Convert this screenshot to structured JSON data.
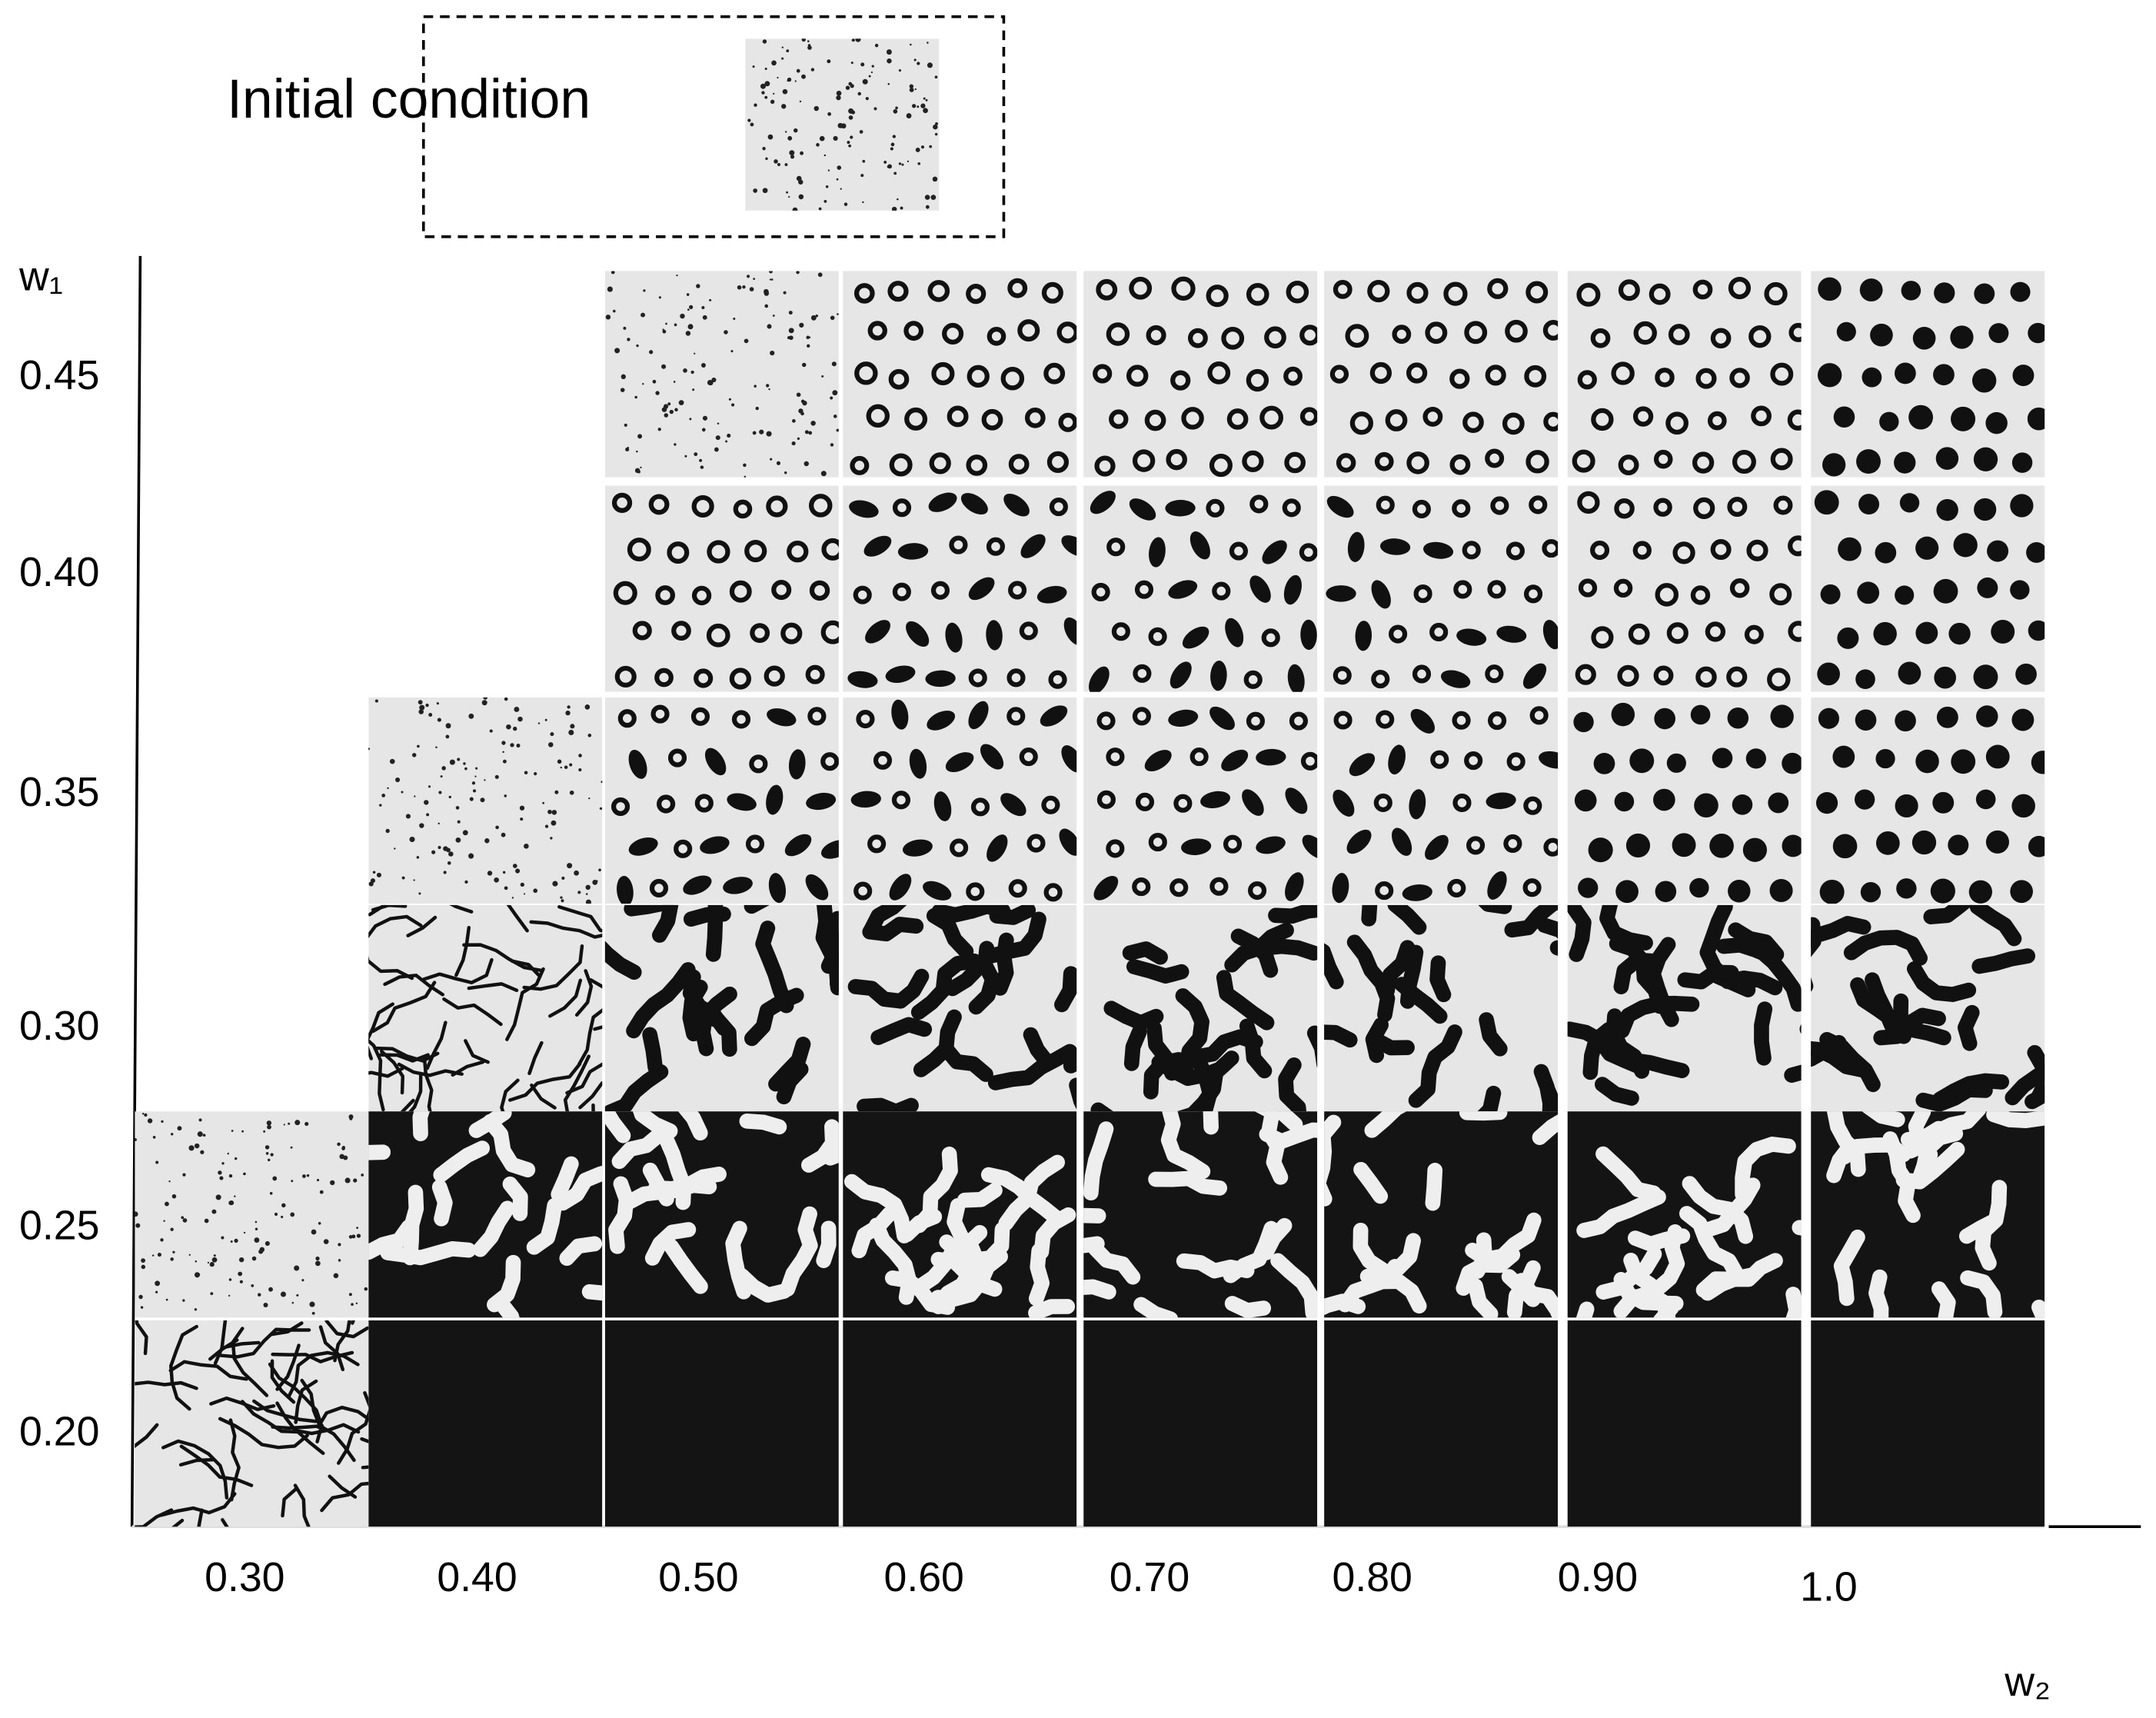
{
  "initial_condition": {
    "label": "Initial condition"
  },
  "y_axis": {
    "label": "w₁",
    "ticks": [
      "0.45",
      "0.40",
      "0.35",
      "0.30",
      "0.25",
      "0.20"
    ]
  },
  "x_axis": {
    "label": "w₂",
    "ticks": [
      "0.30",
      "0.40",
      "0.50",
      "0.60",
      "0.70",
      "0.80",
      "0.90",
      "1.0"
    ]
  }
}
